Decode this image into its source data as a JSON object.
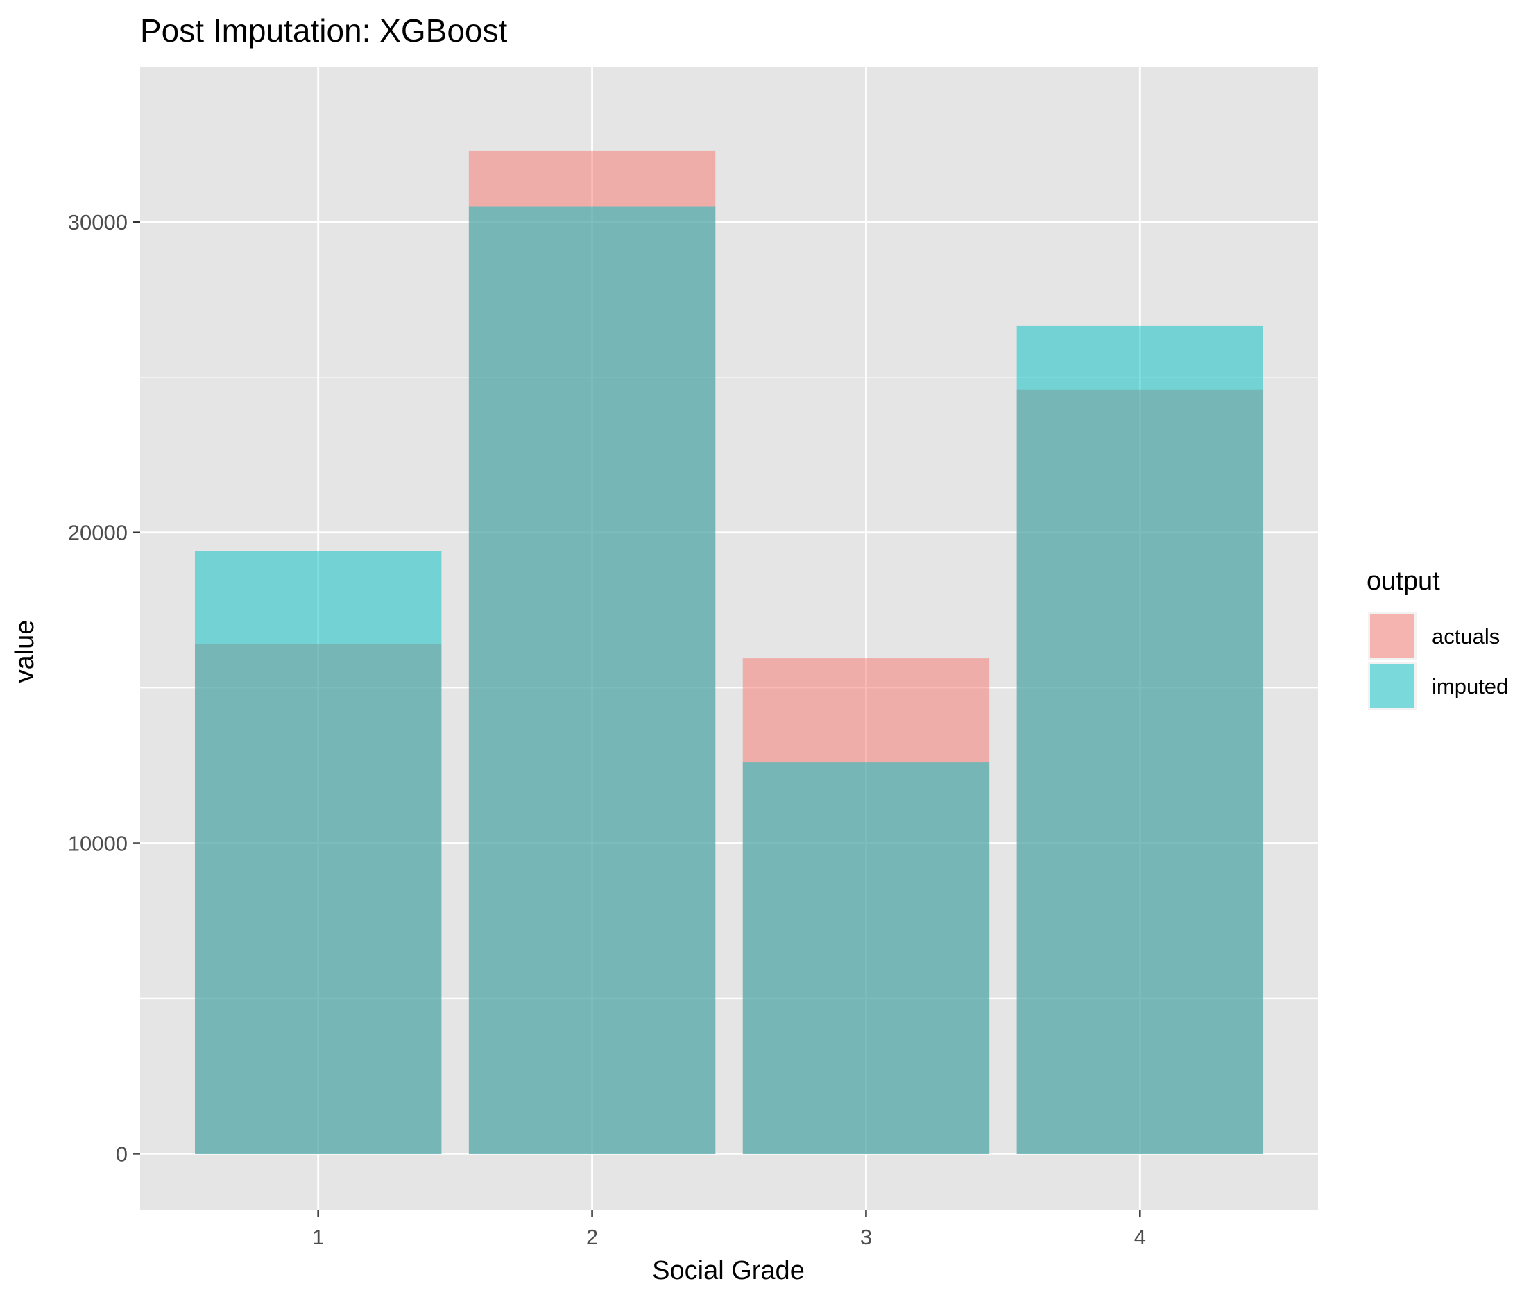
{
  "chart_data": {
    "type": "bar",
    "title": "Post Imputation: XGBoost",
    "xlabel": "Social Grade",
    "ylabel": "value",
    "categories": [
      "1",
      "2",
      "3",
      "4"
    ],
    "series": [
      {
        "name": "actuals",
        "values": [
          16400,
          32300,
          15950,
          24600
        ],
        "color": "#F8766D"
      },
      {
        "name": "imputed",
        "values": [
          19400,
          30500,
          12600,
          26650
        ],
        "color": "#00BFC4"
      }
    ],
    "ylim": [
      -1800,
      35000
    ],
    "yticks": [
      0,
      10000,
      20000,
      30000
    ],
    "ytick_labels": [
      "0",
      "10000",
      "20000",
      "30000"
    ],
    "grid": true,
    "bar_opacity": 0.5,
    "legend": {
      "title": "output",
      "position": "right"
    },
    "colors": {
      "panel_bg": "#E5E5E5",
      "grid": "#FFFFFF",
      "text": "#4D4D4D",
      "title": "#000000"
    }
  }
}
